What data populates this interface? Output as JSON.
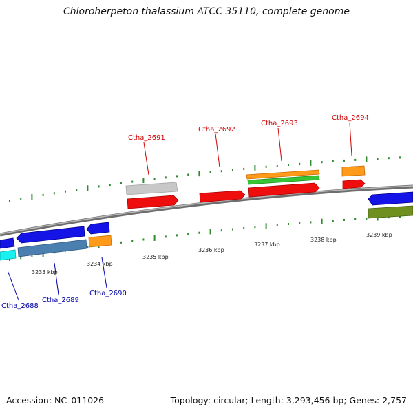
{
  "title": "Chloroherpeton thalassium ATCC 35110, complete genome",
  "footer": {
    "accession": "Accession: NC_011026",
    "summary": "Topology: circular; Length: 3,293,456 bp; Genes: 2,757"
  },
  "colors": {
    "top_label": "#cc0000",
    "bottom_label": "#0000aa",
    "tick": "#2e8b2e",
    "backbone": "#8a8a8a"
  },
  "scale_labels": [
    "3233 kbp",
    "3234 kbp",
    "3235 kbp",
    "3236 kbp",
    "3237 kbp",
    "3238 kbp",
    "3239 kbp"
  ],
  "gene_labels": {
    "top": [
      "Ctha_2691",
      "Ctha_2692",
      "Ctha_2693",
      "Ctha_2694"
    ],
    "bottom": [
      "Ctha_2688",
      "Ctha_2689",
      "Ctha_2690"
    ]
  }
}
